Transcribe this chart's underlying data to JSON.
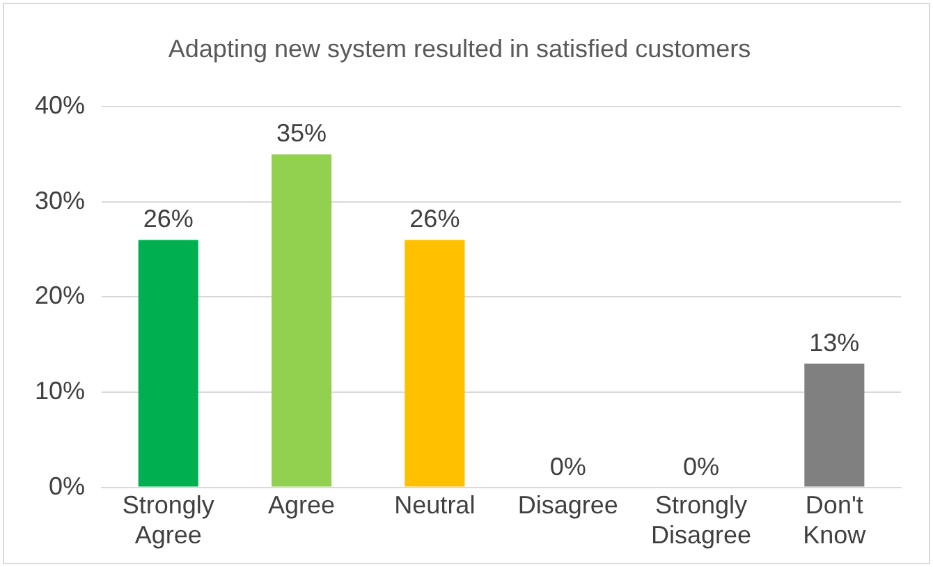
{
  "chart_data": {
    "type": "bar",
    "title": "Adapting new system resulted in satisfied customers",
    "categories": [
      "Strongly Agree",
      "Agree",
      "Neutral",
      "Disagree",
      "Strongly Disagree",
      "Don't Know"
    ],
    "values": [
      26,
      35,
      26,
      0,
      0,
      13
    ],
    "colors": [
      "#00b050",
      "#92d050",
      "#ffc000",
      "#5b9bd5",
      "#a5a5a5",
      "#808080"
    ],
    "value_labels": [
      "26%",
      "35%",
      "26%",
      "0%",
      "0%",
      "13%"
    ],
    "ylim": [
      0,
      40
    ],
    "yticks": [
      {
        "value": 0,
        "label": "0%"
      },
      {
        "value": 10,
        "label": "10%"
      },
      {
        "value": 20,
        "label": "20%"
      },
      {
        "value": 30,
        "label": "30%"
      },
      {
        "value": 40,
        "label": "40%"
      }
    ],
    "grid": "y",
    "legend": false
  }
}
